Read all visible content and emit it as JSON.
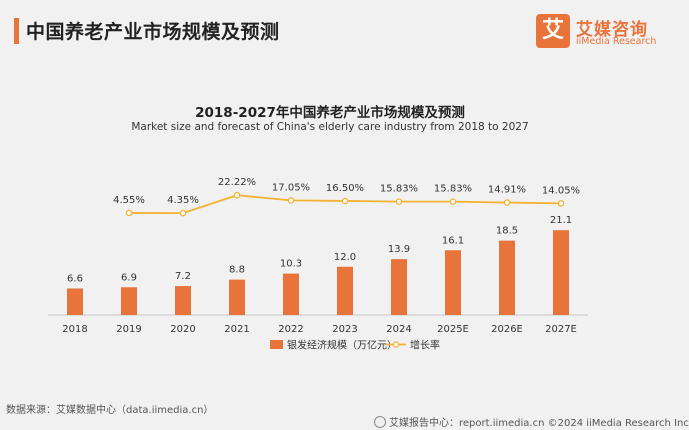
{
  "header": {
    "title": "中国养老产业市场规模及预测"
  },
  "logo": {
    "mark": "艾",
    "name_cn": "艾媒咨询",
    "name_en": "iiMedia Research"
  },
  "chart_data": {
    "type": "bar+line",
    "title": "2018-2027年中国养老产业市场规模及预测",
    "subtitle": "Market size and forecast of China's elderly care industry from 2018 to 2027",
    "categories": [
      "2018",
      "2019",
      "2020",
      "2021",
      "2022",
      "2023",
      "2024",
      "2025E",
      "2026E",
      "2027E"
    ],
    "series": [
      {
        "name": "银发经济规模（万亿元）",
        "type": "bar",
        "color": "#e8743b",
        "values": [
          6.6,
          6.9,
          7.2,
          8.8,
          10.3,
          12.0,
          13.9,
          16.1,
          18.5,
          21.1
        ],
        "labels": [
          "6.6",
          "6.9",
          "7.2",
          "8.8",
          "10.3",
          "12.0",
          "13.9",
          "16.1",
          "18.5",
          "21.1"
        ]
      },
      {
        "name": "增长率",
        "type": "line",
        "color": "#f2b233",
        "values": [
          null,
          4.55,
          4.35,
          22.22,
          17.05,
          16.5,
          15.83,
          15.83,
          14.91,
          14.05
        ],
        "labels": [
          "",
          "4.55%",
          "4.35%",
          "22.22%",
          "17.05%",
          "16.50%",
          "15.83%",
          "15.83%",
          "14.91%",
          "14.05%"
        ]
      }
    ],
    "legend": "bottom",
    "grid": false
  },
  "footer": {
    "source": "数据来源：艾媒数据中心（data.iimedia.cn）",
    "site": "艾媒报告中心：report.iimedia.cn   ©2024  iiMedia Research Inc"
  }
}
